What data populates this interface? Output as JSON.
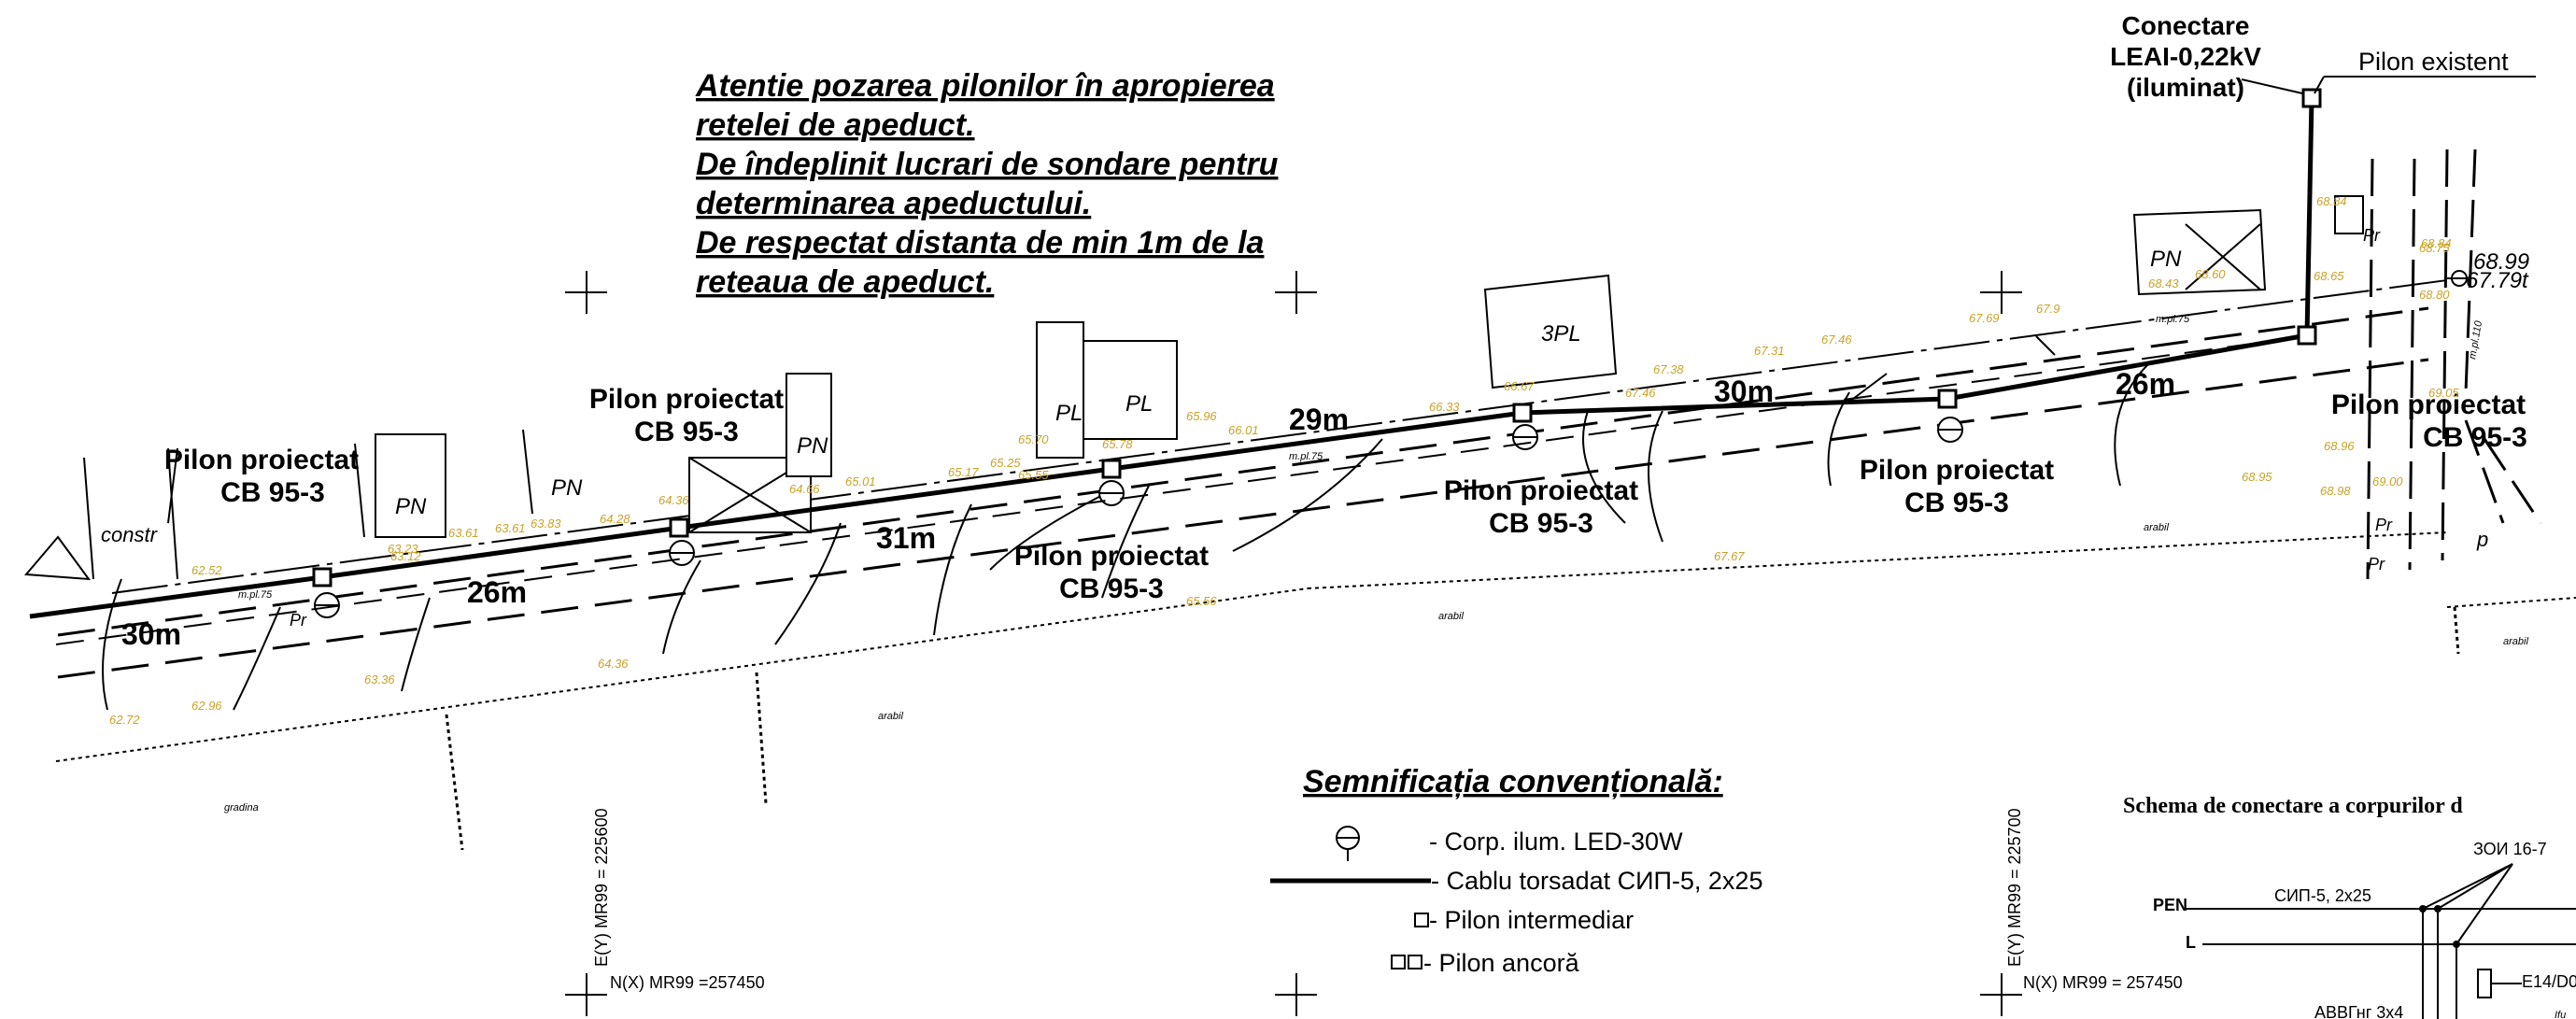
{
  "notes": [
    "Atentie pozarea pilonilor în apropierea",
    "retelei de apeduct.",
    "De îndeplinit lucrari de sondare pentru",
    "determinarea apeductului.",
    "De respectat distanta de min 1m de la",
    "reteaua de apeduct."
  ],
  "connection": {
    "line1": "Conectare",
    "line2": "LEAI-0,22kV",
    "line3": "(iluminat)",
    "existing": "Pilon existent"
  },
  "pilons": [
    {
      "l1": "Pilon proiectat",
      "l2": "CB 95-3"
    },
    {
      "l1": "Pilon proiectat",
      "l2": "CB 95-3"
    },
    {
      "l1": "Pilon proiectat",
      "l2": "CB 95-3"
    },
    {
      "l1": "Pilon proiectat",
      "l2": "CB 95-3"
    },
    {
      "l1": "Pilon proiectat",
      "l2": "CB 95-3"
    },
    {
      "l1": "Pilon proiectat",
      "l2": "CB 95-3"
    }
  ],
  "spans": [
    "30m",
    "26m",
    "31m",
    "29m",
    "30m",
    "26m"
  ],
  "buildings": [
    "constr",
    "PN",
    "PN",
    "PN",
    "PL",
    "PL",
    "3PL",
    "PN",
    "Pr",
    "Pr",
    "Pr",
    "Pr",
    "p"
  ],
  "areas": [
    "gradina",
    "arabil",
    "arabil",
    "arabil",
    "arabil"
  ],
  "mpl": [
    "m.pl.75",
    "m.pl.75",
    "m.pl.75",
    "m.pl.110"
  ],
  "elevations": [
    "62.52",
    "63.23",
    "63.12",
    "63.61",
    "63.61",
    "63.83",
    "64.28",
    "64.36",
    "64.66",
    "65.01",
    "65.17",
    "65.25",
    "65.55",
    "65.70",
    "65.78",
    "65.96",
    "66.01",
    "66.33",
    "66.67",
    "67.38",
    "67.46",
    "67.31",
    "67.46",
    "67.69",
    "67.9",
    "68.43",
    "68.60",
    "68.65",
    "68.84",
    "68.75",
    "68.84",
    "68.80",
    "69.05",
    "68.96",
    "68.98",
    "68.95",
    "69.00",
    "62.72",
    "62.96",
    "63.36",
    "64.36",
    "65.56",
    "67.67"
  ],
  "benchmark": {
    "top": "68.99",
    "bottom": "67.79t"
  },
  "legend": {
    "title": "Semnificația convențională:",
    "items": [
      "- Corp. ilum. LED-30W",
      "- Cablu torsadat СИП-5, 2x25",
      "- Pilon intermediar",
      "- Pilon ancoră"
    ]
  },
  "coords": {
    "ey1": "E(Y) MR99 = 225600",
    "nx1": "N(X) MR99 =257450",
    "ey2": "E(Y) MR99 = 225700",
    "nx2": "N(X) MR99 = 257450"
  },
  "schema": {
    "title": "Schema de conectare a corpurilor d",
    "pen": "PEN",
    "l": "L",
    "cable": "СИП-5, 2x25",
    "zoi": "ЗОИ 16-7",
    "fuse": "E14/D0",
    "avvg": "АВВГнг 3x4",
    "ifu": "Ifu"
  }
}
